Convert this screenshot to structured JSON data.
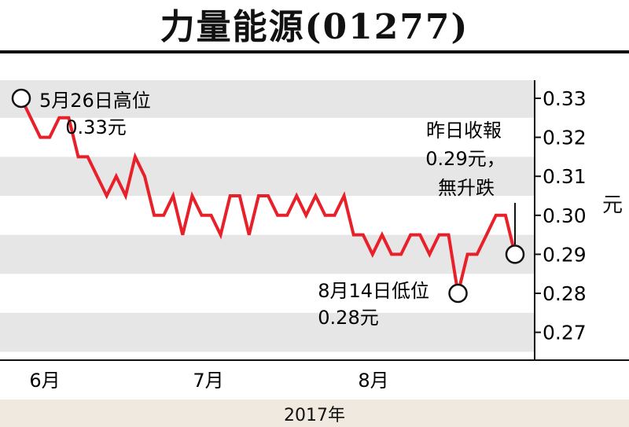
{
  "chart_data": {
    "type": "line",
    "title": "力量能源(01277)",
    "unit": "元",
    "xlabel": "2017年",
    "x_tick_labels": [
      "6月",
      "7月",
      "8月"
    ],
    "ylim": [
      0.265,
      0.335
    ],
    "y_ticks": [
      "0.33",
      "0.32",
      "0.31",
      "0.30",
      "0.29",
      "0.28",
      "0.27"
    ],
    "grid": "horizontal bands",
    "series": [
      {
        "values": [
          0.33,
          0.325,
          0.32,
          0.32,
          0.325,
          0.325,
          0.315,
          0.315,
          0.31,
          0.305,
          0.31,
          0.305,
          0.315,
          0.31,
          0.3,
          0.3,
          0.305,
          0.295,
          0.305,
          0.3,
          0.3,
          0.295,
          0.305,
          0.305,
          0.295,
          0.305,
          0.305,
          0.3,
          0.3,
          0.305,
          0.3,
          0.305,
          0.3,
          0.3,
          0.305,
          0.295,
          0.295,
          0.29,
          0.295,
          0.29,
          0.29,
          0.295,
          0.295,
          0.29,
          0.295,
          0.295,
          0.28,
          0.29,
          0.29,
          0.295,
          0.3,
          0.3,
          0.29
        ]
      }
    ],
    "annotations": {
      "high": {
        "date": "5月26日高位",
        "price": "0.33元"
      },
      "low": {
        "date": "8月14日低位",
        "price": "0.28元"
      },
      "latest": {
        "line1": "昨日收報",
        "line2": "0.29元，",
        "line3": "無升跌"
      }
    },
    "colors": {
      "line": "#e8202a",
      "band": "#e6e6e6",
      "footer": "#efe9df"
    }
  }
}
